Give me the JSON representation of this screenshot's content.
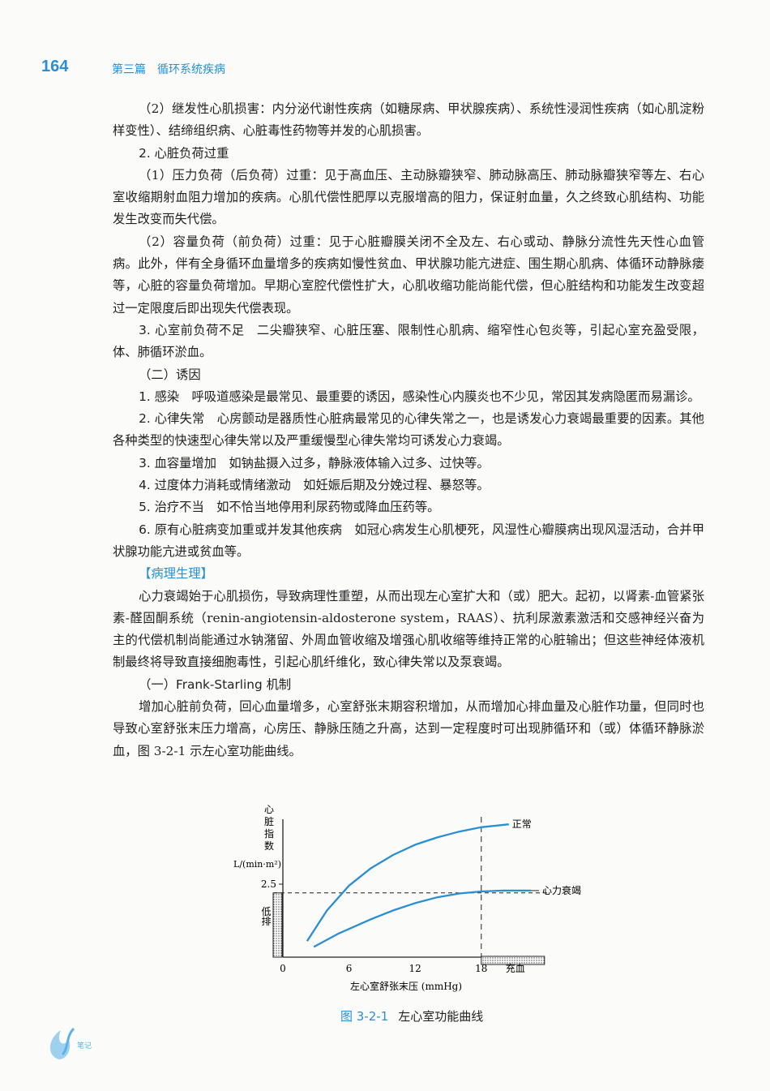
{
  "header": {
    "page_number": "164",
    "part": "第三篇",
    "chapter": "循环系统疾病"
  },
  "paragraphs": [
    {
      "text": "（2）继发性心肌损害：内分泌代谢性疾病（如糖尿病、甲状腺疾病）、系统性浸润性疾病（如心肌淀粉样变性）、结缔组织病、心脏毒性药物等并发的心肌损害。"
    },
    {
      "heading": "2. 心脏负荷过重"
    },
    {
      "text": "（1）压力负荷（后负荷）过重：见于高血压、主动脉瓣狭窄、肺动脉高压、肺动脉瓣狭窄等左、右心室收缩期射血阻力增加的疾病。心肌代偿性肥厚以克服增高的阻力，保证射血量，久之终致心肌结构、功能发生改变而失代偿。"
    },
    {
      "text": "（2）容量负荷（前负荷）过重：见于心脏瓣膜关闭不全及左、右心或动、静脉分流性先天性心血管病。此外，伴有全身循环血量增多的疾病如慢性贫血、甲状腺功能亢进症、围生期心肌病、体循环动静脉瘘等，心脏的容量负荷增加。早期心室腔代偿性扩大，心肌收缩功能尚能代偿，但心脏结构和功能发生改变超过一定限度后即出现失代偿表现。"
    },
    {
      "lead": "3. 心室前负荷不足",
      "text": "二尖瓣狭窄、心脏压塞、限制性心肌病、缩窄性心包炎等，引起心室充盈受限，体、肺循环淤血。"
    },
    {
      "heading": "（二）诱因"
    },
    {
      "lead": "1. 感染",
      "text": "呼吸道感染是最常见、最重要的诱因，感染性心内膜炎也不少见，常因其发病隐匿而易漏诊。"
    },
    {
      "lead": "2. 心律失常",
      "text": "心房颤动是器质性心脏病最常见的心律失常之一，也是诱发心力衰竭最重要的因素。其他各种类型的快速型心律失常以及严重缓慢型心律失常均可诱发心力衰竭。"
    },
    {
      "lead": "3. 血容量增加",
      "text": "如钠盐摄入过多，静脉液体输入过多、过快等。"
    },
    {
      "lead": "4. 过度体力消耗或情绪激动",
      "text": "如妊娠后期及分娩过程、暴怒等。"
    },
    {
      "lead": "5. 治疗不当",
      "text": "如不恰当地停用利尿药物或降血压药等。"
    },
    {
      "lead": "6. 原有心脏病变加重或并发其他疾病",
      "text": "如冠心病发生心肌梗死，风湿性心瓣膜病出现风湿活动，合并甲状腺功能亢进或贫血等。"
    },
    {
      "section": "【病理生理】"
    },
    {
      "text": "心力衰竭始于心肌损伤，导致病理性重塑，从而出现左心室扩大和（或）肥大。起初，以肾素-血管紧张素-醛固酮系统（renin-angiotensin-aldosterone system，RAAS）、抗利尿激素激活和交感神经兴奋为主的代偿机制尚能通过水钠潴留、外周血管收缩及增强心肌收缩等维持正常的心脏输出；但这些神经体液机制最终将导致直接细胞毒性，引起心肌纤维化，致心律失常以及泵衰竭。"
    },
    {
      "heading": "（一）Frank-Starling 机制"
    },
    {
      "text": "增加心脏前负荷，回心血量增多，心室舒张末期容积增加，从而增加心排血量及心脏作功量，但同时也导致心室舒张末压力增高，心房压、静脉压随之升高，达到一定程度时可出现肺循环和（或）体循环静脉淤血，图 3-2-1 示左心室功能曲线。"
    }
  ],
  "figure": {
    "number": "图 3-2-1",
    "caption": "左心室功能曲线"
  },
  "chart_data": {
    "type": "line",
    "ylabel_chars": [
      "心",
      "脏",
      "指",
      "数"
    ],
    "yunit": "L/(min·m²)",
    "xlabel": "左心室舒张末压 (mmHg)",
    "xticks": [
      "0",
      "6",
      "12",
      "18"
    ],
    "yticks": [
      "2.5"
    ],
    "xlim": [
      0,
      24
    ],
    "ylim": [
      0,
      5
    ],
    "threshold_y": 2.2,
    "threshold_x": 18,
    "region_low_output": "低排",
    "region_congestion": "充血",
    "series": [
      {
        "name": "正常",
        "x": [
          2.2,
          4,
          6,
          8,
          10,
          12,
          14,
          16,
          18,
          20.5
        ],
        "y": [
          0.55,
          1.6,
          2.45,
          3.05,
          3.5,
          3.85,
          4.1,
          4.3,
          4.45,
          4.55
        ]
      },
      {
        "name": "心力衰竭",
        "x": [
          2.8,
          5,
          8,
          10,
          12,
          14,
          16,
          18,
          20,
          22.5
        ],
        "y": [
          0.35,
          0.8,
          1.3,
          1.6,
          1.85,
          2.05,
          2.18,
          2.25,
          2.28,
          2.28
        ]
      }
    ],
    "series_color": "#2a8fd0"
  },
  "footer": {
    "logo_text": "笔记"
  }
}
